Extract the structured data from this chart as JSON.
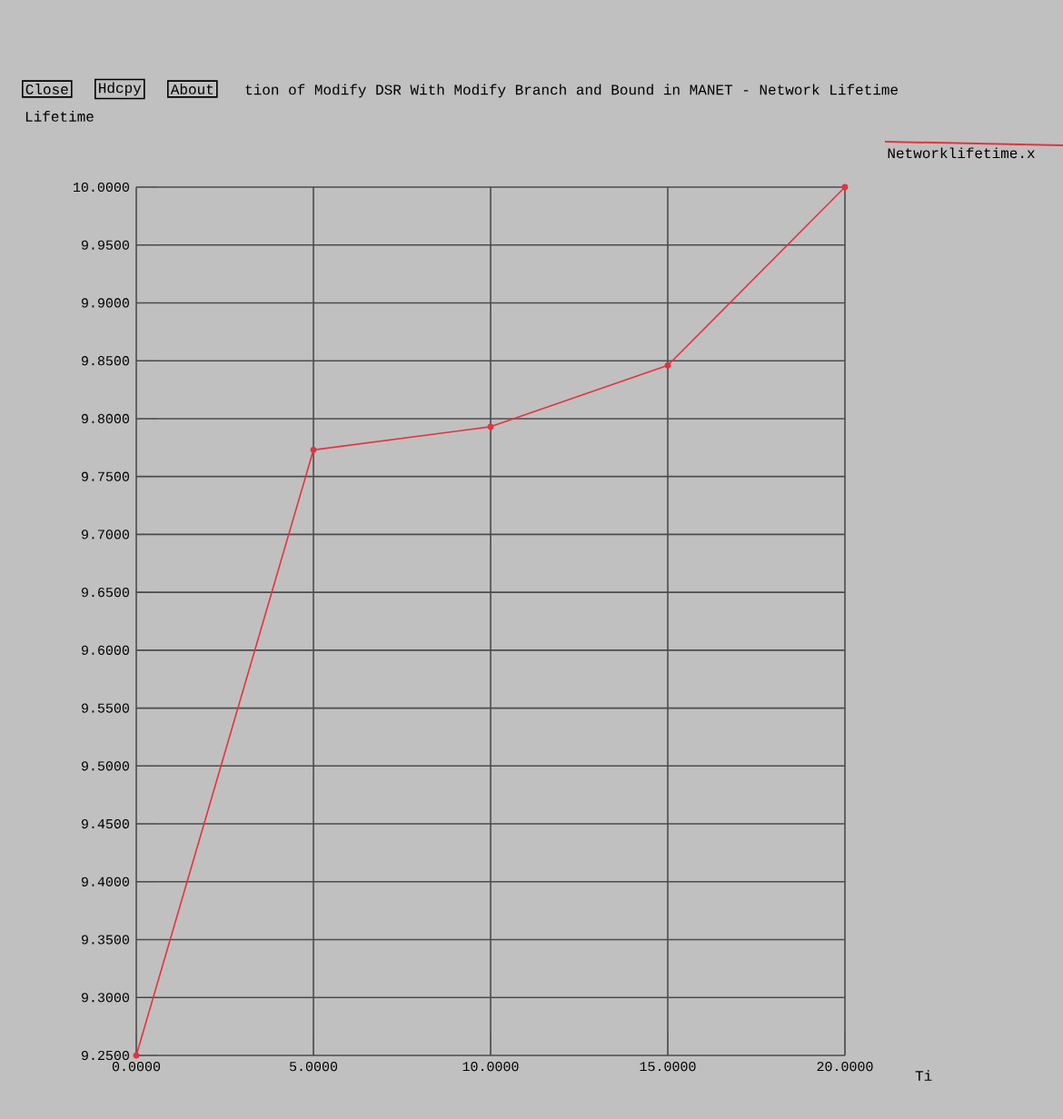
{
  "chart_data": {
    "type": "line",
    "title": "tion of Modify DSR With Modify Branch and Bound in MANET - Network Lifetime",
    "xlabel": "Ti",
    "ylabel": "Lifetime",
    "annotations": [
      "Close",
      "Hdcpy",
      "About"
    ],
    "x": [
      0,
      5,
      10,
      15,
      20
    ],
    "series": [
      {
        "name": "Networklifetime.x",
        "color": "#e8323c",
        "values": [
          9.25,
          9.773,
          9.793,
          9.846,
          10.0
        ]
      }
    ],
    "xlim": [
      0,
      20
    ],
    "ylim": [
      9.25,
      10.0
    ],
    "xticks": [
      {
        "value": 0,
        "label": "0.0000"
      },
      {
        "value": 5,
        "label": "5.0000"
      },
      {
        "value": 10,
        "label": "10.0000"
      },
      {
        "value": 15,
        "label": "15.0000"
      },
      {
        "value": 20,
        "label": "20.0000"
      }
    ],
    "yticks": [
      {
        "value": 9.25,
        "label": "9.2500"
      },
      {
        "value": 9.3,
        "label": "9.3000"
      },
      {
        "value": 9.35,
        "label": "9.3500"
      },
      {
        "value": 9.4,
        "label": "9.4000"
      },
      {
        "value": 9.45,
        "label": "9.4500"
      },
      {
        "value": 9.5,
        "label": "9.5000"
      },
      {
        "value": 9.55,
        "label": "9.5500"
      },
      {
        "value": 9.6,
        "label": "9.6000"
      },
      {
        "value": 9.65,
        "label": "9.6500"
      },
      {
        "value": 9.7,
        "label": "9.7000"
      },
      {
        "value": 9.75,
        "label": "9.7500"
      },
      {
        "value": 9.8,
        "label": "9.8000"
      },
      {
        "value": 9.85,
        "label": "9.8500"
      },
      {
        "value": 9.9,
        "label": "9.9000"
      },
      {
        "value": 9.95,
        "label": "9.9500"
      },
      {
        "value": 10.0,
        "label": "10.0000"
      }
    ],
    "grid": true,
    "legend": "top right",
    "marker": "circle",
    "line_style": "solid"
  }
}
